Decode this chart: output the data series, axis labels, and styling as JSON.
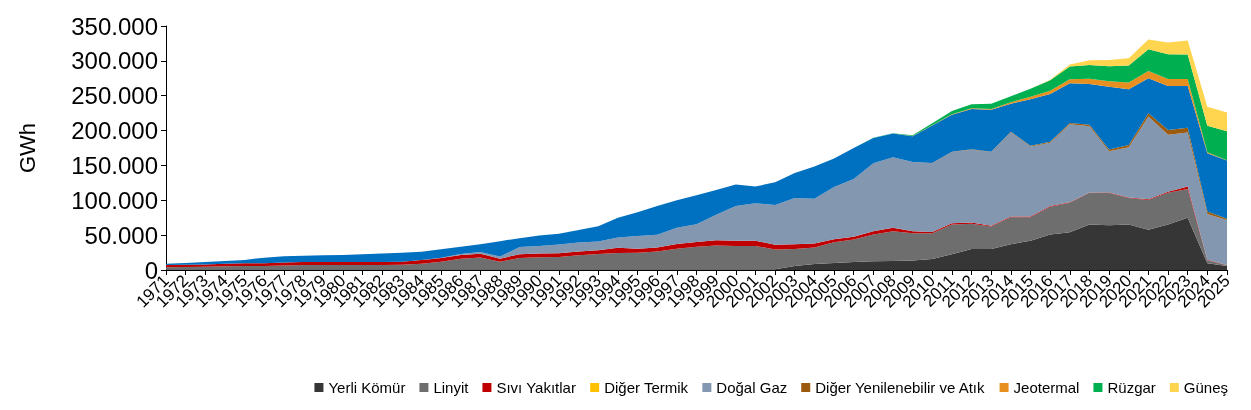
{
  "chart_data": {
    "type": "area",
    "stacked": true,
    "ylabel": "GWh",
    "legend": "bottom",
    "grid": false,
    "categories": [
      "1971",
      "1972",
      "1973",
      "1974",
      "1975",
      "1976",
      "1977",
      "1978",
      "1979",
      "1980",
      "1981",
      "1982",
      "1983",
      "1984",
      "1985",
      "1986",
      "1987",
      "1988",
      "1989",
      "1990",
      "1991",
      "1992",
      "1993",
      "1994",
      "1995",
      "1996",
      "1997",
      "1998",
      "1999",
      "2000",
      "2001",
      "2002",
      "2003",
      "2004",
      "2005",
      "2006",
      "2007",
      "2008",
      "2009",
      "2010",
      "2011",
      "2012",
      "2013",
      "2014",
      "2015",
      "2016",
      "2017",
      "2018",
      "2019",
      "2020",
      "2021",
      "2022",
      "2023",
      "2024",
      "2025"
    ],
    "ylim": [
      0,
      350000
    ],
    "yticks": [
      {
        "value": 0,
        "label": "0"
      },
      {
        "value": 50000,
        "label": "50.000"
      },
      {
        "value": 100000,
        "label": "100.000"
      },
      {
        "value": 150000,
        "label": "150.000"
      },
      {
        "value": 200000,
        "label": "200.000"
      },
      {
        "value": 250000,
        "label": "250.000"
      },
      {
        "value": 300000,
        "label": "300.000"
      },
      {
        "value": 350000,
        "label": "350.000"
      }
    ],
    "series": [
      {
        "name": "Yerli Kömür",
        "color": "#363636",
        "values": [
          1000,
          1000,
          1000,
          1000,
          1000,
          1000,
          1000,
          1000,
          1000,
          1000,
          1000,
          1000,
          1000,
          1000,
          1000,
          1000,
          1000,
          1000,
          1000,
          1000,
          1000,
          1000,
          1000,
          1100,
          1100,
          1100,
          1100,
          1100,
          1100,
          1100,
          1100,
          1100,
          5700,
          8500,
          10200,
          11400,
          12500,
          13000,
          13600,
          15900,
          22700,
          30100,
          30100,
          36900,
          42000,
          51100,
          54000,
          65300,
          64100,
          65300,
          57900,
          65300,
          74900,
          9600,
          5700
        ]
      },
      {
        "name": "Linyit",
        "color": "#6e6e6e",
        "values": [
          2800,
          3300,
          3800,
          4400,
          4900,
          4900,
          5500,
          6000,
          6000,
          6000,
          6000,
          6000,
          6500,
          8100,
          10800,
          15000,
          17000,
          11000,
          16200,
          17300,
          17800,
          20000,
          22000,
          23300,
          23800,
          25500,
          29500,
          32300,
          34000,
          33500,
          33500,
          28400,
          24400,
          23800,
          29500,
          32300,
          38600,
          42600,
          39200,
          36900,
          42600,
          36300,
          32300,
          38600,
          33500,
          39700,
          42600,
          45400,
          46500,
          38000,
          42600,
          45400,
          41400,
          4500,
          1100
        ]
      },
      {
        "name": "Sıvı Yakıtlar",
        "color": "#c00000",
        "values": [
          3200,
          3200,
          3200,
          3700,
          3700,
          3700,
          4300,
          4300,
          4300,
          4300,
          4300,
          4300,
          4300,
          5400,
          5400,
          5400,
          5400,
          4300,
          5400,
          5400,
          5400,
          5400,
          5400,
          7400,
          5700,
          5700,
          6800,
          6800,
          7400,
          7400,
          7400,
          6800,
          6800,
          5700,
          4500,
          4000,
          4500,
          5100,
          2800,
          1700,
          1700,
          1700,
          1100,
          1100,
          1100,
          1100,
          600,
          600,
          600,
          600,
          1100,
          1700,
          3400,
          600,
          300
        ]
      },
      {
        "name": "Diğer Termik",
        "color": "#ffc000",
        "values": [
          null,
          null,
          null,
          null,
          null,
          null,
          null,
          null,
          null,
          null,
          null,
          null,
          null,
          null,
          null,
          null,
          null,
          null,
          null,
          null,
          null,
          null,
          null,
          null,
          null,
          null,
          null,
          null,
          null,
          null,
          null,
          null,
          null,
          null,
          null,
          null,
          null,
          null,
          null,
          null,
          null,
          null,
          null,
          null,
          null,
          null,
          null,
          null,
          null,
          null,
          null,
          null,
          null,
          null,
          null
        ]
      },
      {
        "name": "Doğal Gaz",
        "color": "#8497b0",
        "values": [
          0,
          0,
          0,
          0,
          0,
          0,
          0,
          0,
          0,
          0,
          0,
          0,
          0,
          0,
          500,
          1500,
          2500,
          3000,
          10500,
          10700,
          12300,
          12900,
          12400,
          14800,
          18200,
          18200,
          23300,
          25500,
          36900,
          49900,
          53900,
          56800,
          66400,
          64100,
          74900,
          82900,
          97600,
          101000,
          99300,
          98700,
          102200,
          104400,
          105600,
          120900,
          100400,
          90800,
          111800,
          94800,
          59000,
          72100,
          118600,
          81700,
          77700,
          65800,
          64700
        ]
      },
      {
        "name": "Diğer Yenilenebilir ve Atık",
        "color": "#9c5b0c",
        "values": [
          0,
          0,
          0,
          0,
          0,
          0,
          0,
          0,
          0,
          0,
          0,
          0,
          0,
          0,
          0,
          0,
          0,
          0,
          0,
          0,
          0,
          0,
          0,
          0,
          0,
          0,
          0,
          0,
          0,
          0,
          0,
          0,
          0,
          0,
          0,
          0,
          0,
          0,
          0,
          300,
          600,
          600,
          600,
          900,
          1100,
          1100,
          1700,
          2300,
          2800,
          3400,
          4500,
          6800,
          6800,
          3400,
          1700
        ]
      },
      {
        "color": "#0070c0",
        "values": [
          2100,
          2700,
          3300,
          3800,
          4900,
          8100,
          9100,
          9100,
          9700,
          10200,
          11300,
          12400,
          12900,
          11800,
          11900,
          10400,
          11200,
          22100,
          12600,
          15100,
          15600,
          18200,
          22100,
          28400,
          34000,
          41400,
          39200,
          41400,
          35200,
          30600,
          23800,
          32900,
          35800,
          46500,
          40900,
          44300,
          36300,
          34000,
          36900,
          53600,
          52800,
          57900,
          60200,
          40000,
          67000,
          68700,
          57300,
          58500,
          89700,
          80000,
          50500,
          63000,
          59600,
          83400,
          83400
        ]
      },
      {
        "name": "Jeotermal",
        "color": "#e8901f",
        "values": [
          0,
          0,
          0,
          0,
          0,
          0,
          0,
          0,
          0,
          0,
          0,
          0,
          0,
          0,
          0,
          0,
          0,
          0,
          0,
          0,
          0,
          0,
          0,
          0,
          0,
          0,
          0,
          0,
          0,
          0,
          0,
          0,
          0,
          0,
          0,
          0,
          0,
          0,
          300,
          600,
          900,
          1100,
          1100,
          2300,
          3400,
          4500,
          5700,
          7400,
          7900,
          9600,
          10200,
          10200,
          10200,
          1700,
          600
        ]
      },
      {
        "name": "Rüzgar",
        "color": "#00b050",
        "values": [
          0,
          0,
          0,
          0,
          0,
          0,
          0,
          0,
          0,
          0,
          0,
          0,
          0,
          0,
          0,
          0,
          0,
          0,
          0,
          0,
          0,
          0,
          0,
          0,
          0,
          0,
          0,
          0,
          0,
          0,
          0,
          0,
          0,
          0,
          0,
          0,
          200,
          600,
          1100,
          2800,
          4500,
          5700,
          7400,
          8500,
          11400,
          15300,
          18200,
          19900,
          21600,
          24400,
          31200,
          35200,
          35200,
          38000,
          41400
        ]
      },
      {
        "name": "Güneş",
        "color": "#ffd54f",
        "values": [
          0,
          0,
          0,
          0,
          0,
          0,
          0,
          0,
          0,
          0,
          0,
          0,
          0,
          0,
          0,
          0,
          0,
          0,
          0,
          0,
          0,
          0,
          0,
          0,
          0,
          0,
          0,
          0,
          0,
          0,
          0,
          0,
          0,
          0,
          0,
          0,
          0,
          0,
          0,
          0,
          0,
          0,
          0,
          0,
          0,
          600,
          2800,
          6800,
          9100,
          10200,
          14200,
          17000,
          19900,
          27200,
          27200
        ]
      }
    ]
  }
}
